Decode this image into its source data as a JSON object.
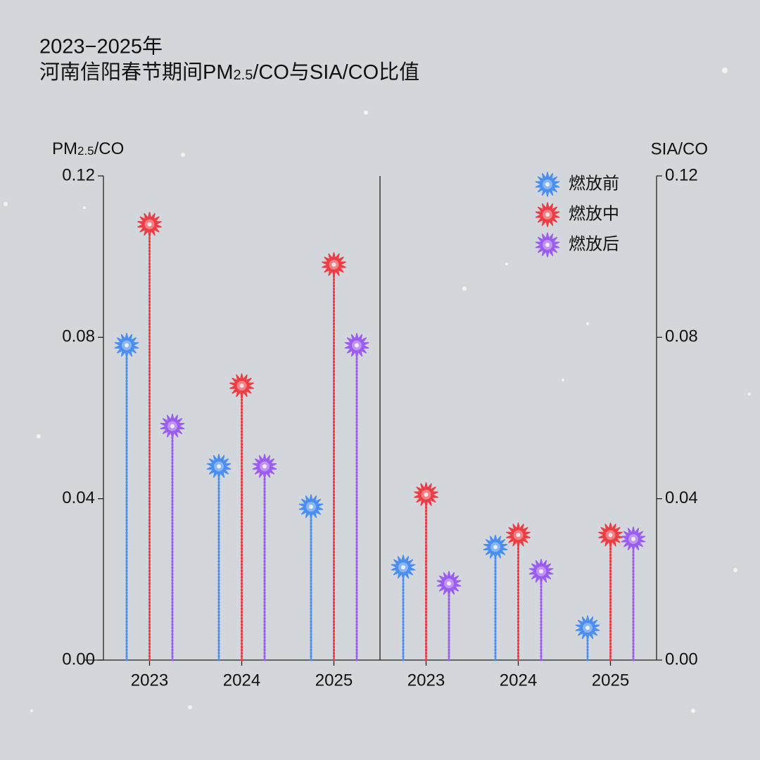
{
  "title": [
    "2023−2025年",
    [
      "河南信阳春节期间PM",
      "2.5",
      "/CO与SIA/CO比值"
    ]
  ],
  "chart_data": [
    {
      "type": "lollipop",
      "ylabel": [
        "PM",
        "2.5",
        "/CO"
      ],
      "categories": [
        "2023",
        "2024",
        "2025"
      ],
      "series": [
        {
          "name": "燃放前",
          "color": "#4a8ef0",
          "values": [
            0.078,
            0.048,
            0.038
          ]
        },
        {
          "name": "燃放中",
          "color": "#ec3c44",
          "values": [
            0.108,
            0.068,
            0.098
          ]
        },
        {
          "name": "燃放后",
          "color": "#9b5cf0",
          "values": [
            0.058,
            0.048,
            0.078
          ]
        }
      ],
      "ylim": [
        0,
        0.12
      ],
      "yticks": [
        {
          "value": 0,
          "label": "0.00"
        },
        0.04,
        0.08,
        0.12
      ],
      "legend": "upper right"
    },
    {
      "type": "lollipop",
      "ylabel": "SIA/CO",
      "categories": [
        "2023",
        "2024",
        "2025"
      ],
      "series": [
        {
          "color": "#4a8ef0",
          "values": [
            0.023,
            0.028,
            0.008
          ]
        },
        {
          "color": "#ec3c44",
          "values": [
            0.041,
            0.031,
            0.031
          ]
        },
        {
          "color": "#9b5cf0",
          "values": [
            0.019,
            0.022,
            0.03
          ]
        }
      ],
      "ylim": [
        0,
        0.12
      ],
      "yticks": [
        {
          "value": 0,
          "label": "0.00"
        },
        0.04,
        0.08,
        0.12
      ]
    }
  ]
}
